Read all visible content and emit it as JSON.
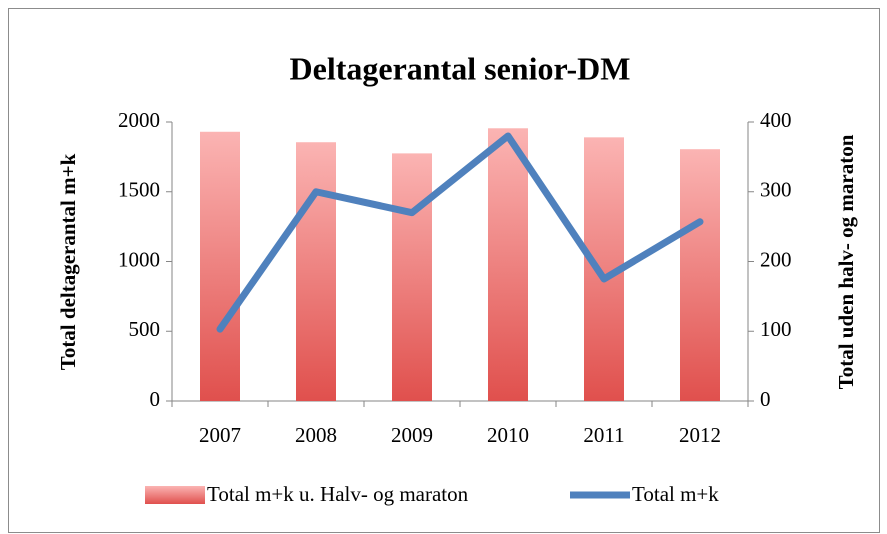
{
  "chart_data": {
    "type": "bar",
    "title": "Deltagerantal senior-DM",
    "ylabel": "Total deltagerantal  m+k",
    "y2label": "Total uden halv- og maraton",
    "categories": [
      "2007",
      "2008",
      "2009",
      "2010",
      "2011",
      "2012"
    ],
    "series": [
      {
        "name": "Total m+k u. Halv- og maraton",
        "type": "bar",
        "color": "#e35a57",
        "values": [
          1930,
          1855,
          1775,
          1955,
          1890,
          1805
        ]
      },
      {
        "name": "Total m+k",
        "type": "line",
        "axis": "y2",
        "color": "#4f81bd",
        "values": [
          103,
          300,
          270,
          380,
          175,
          257
        ]
      }
    ],
    "ylim": [
      0,
      2000
    ],
    "yticks": [
      0,
      500,
      1000,
      1500,
      2000
    ],
    "y2lim": [
      0,
      400
    ],
    "y2ticks": [
      0,
      100,
      200,
      300,
      400
    ],
    "grid": false,
    "legend": "bottom"
  }
}
